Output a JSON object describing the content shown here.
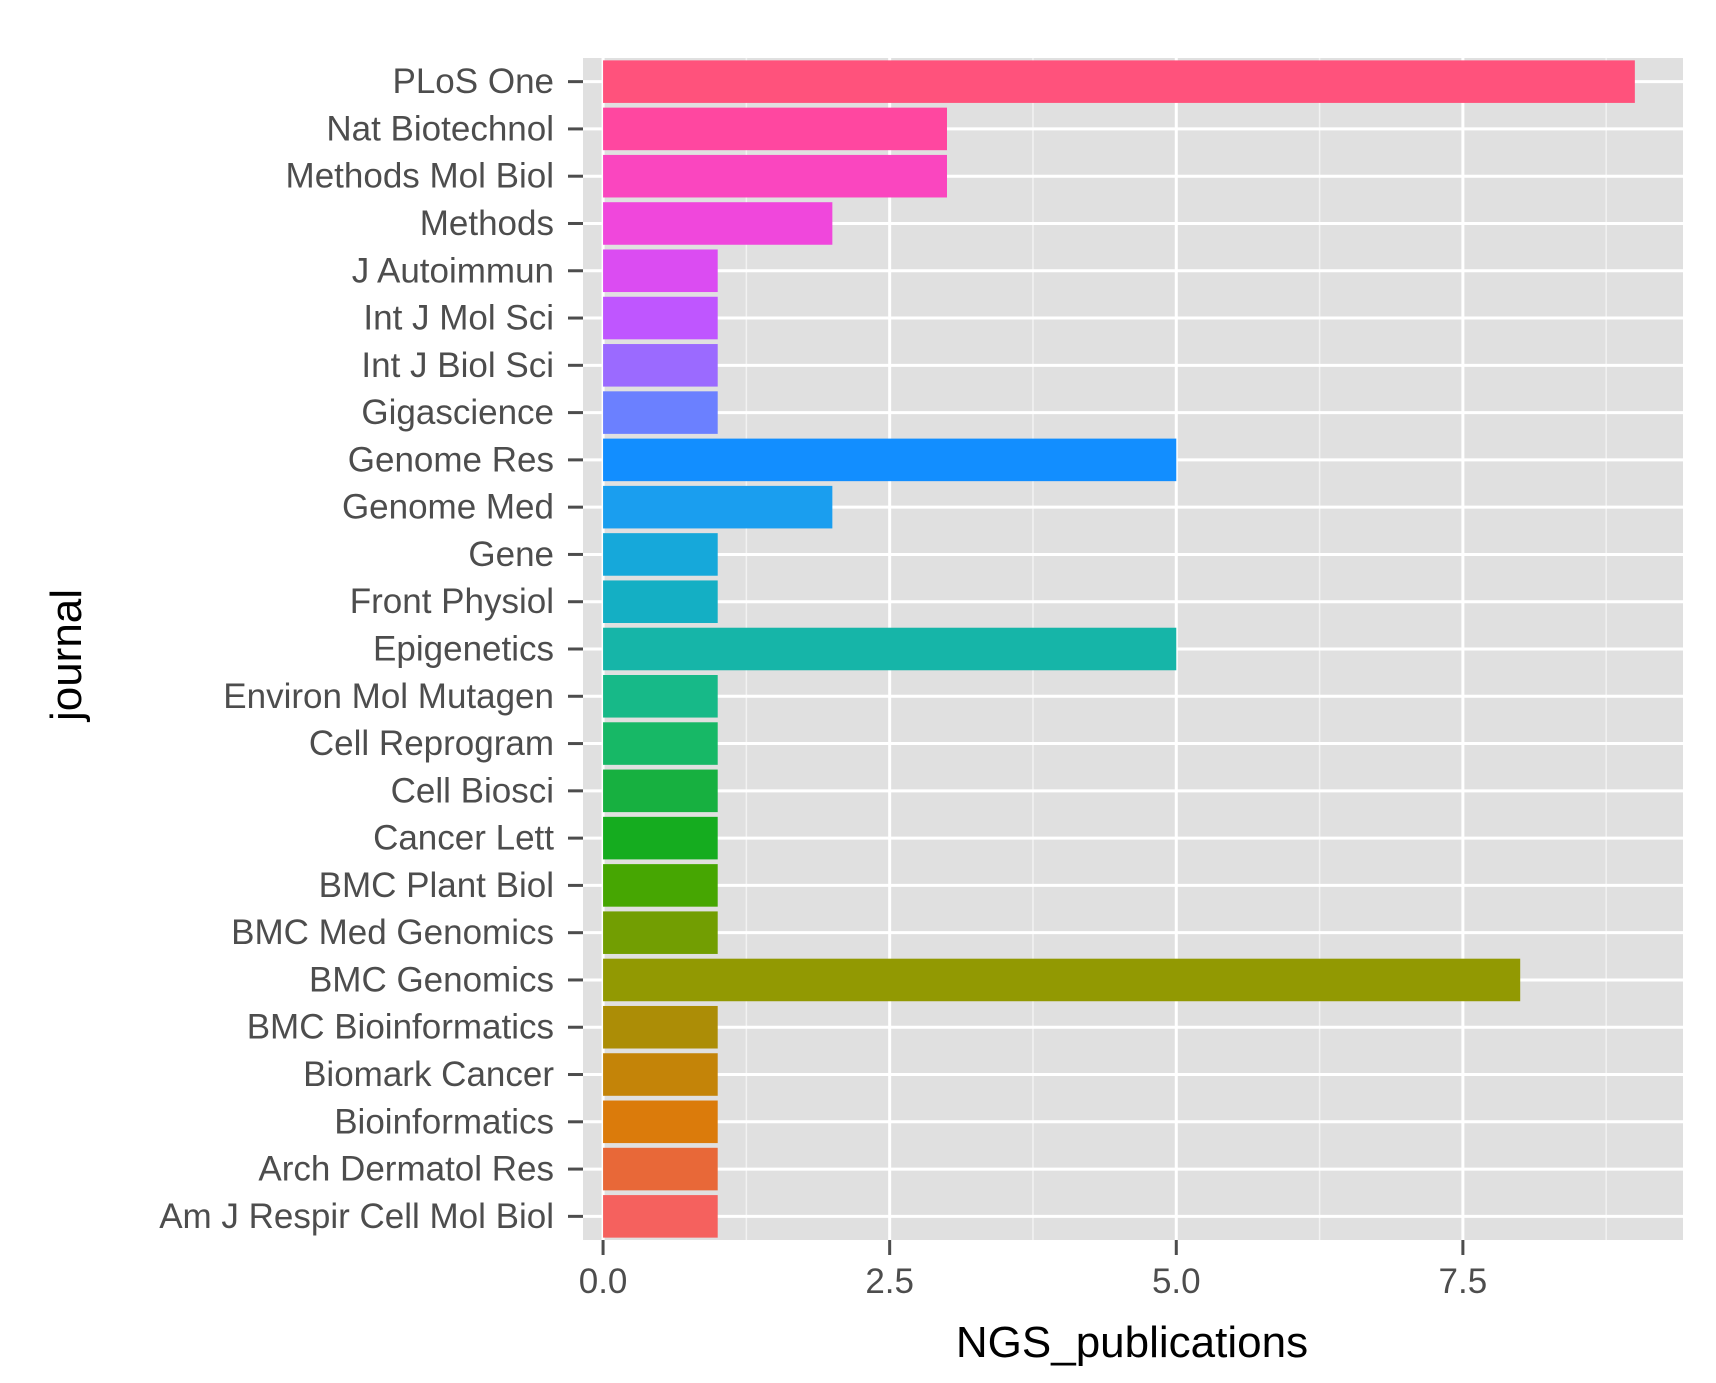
{
  "chart_data": {
    "type": "bar",
    "orientation": "horizontal",
    "xlabel": "NGS_publications",
    "ylabel": "journal",
    "xlim": [
      -0.175,
      9.42
    ],
    "x_ticks": [
      0.0,
      2.5,
      5.0,
      7.5
    ],
    "x_tick_labels": [
      "0.0",
      "2.5",
      "5.0",
      "7.5"
    ],
    "x_minor_ticks": [
      1.25,
      3.75,
      6.25,
      8.75
    ],
    "grid": true,
    "panel_background": "#e0e0e0",
    "categories": [
      "PLoS One",
      "Nat Biotechnol",
      "Methods Mol Biol",
      "Methods",
      "J Autoimmun",
      "Int J Mol Sci",
      "Int J Biol Sci",
      "Gigascience",
      "Genome Res",
      "Genome Med",
      "Gene",
      "Front Physiol",
      "Epigenetics",
      "Environ Mol Mutagen",
      "Cell Reprogram",
      "Cell Biosci",
      "Cancer Lett",
      "BMC Plant Biol",
      "BMC Med Genomics",
      "BMC Genomics",
      "BMC Bioinformatics",
      "Biomark Cancer",
      "Bioinformatics",
      "Arch Dermatol Res",
      "Am J Respir Cell Mol Biol"
    ],
    "values": [
      9,
      3,
      3,
      2,
      1,
      1,
      1,
      1,
      5,
      2,
      1,
      1,
      5,
      1,
      1,
      1,
      1,
      1,
      1,
      8,
      1,
      1,
      1,
      1,
      1
    ],
    "colors": [
      "#FF527C",
      "#FF47A0",
      "#FA46BF",
      "#F047DC",
      "#DB4CF2",
      "#BF56FF",
      "#9B6AFF",
      "#6B80FF",
      "#128EFF",
      "#1A9EEF",
      "#16A8DA",
      "#14AFC4",
      "#16B5A8",
      "#17B988",
      "#17B866",
      "#17B040",
      "#15AC1F",
      "#46A602",
      "#729E02",
      "#929902",
      "#AC8D06",
      "#C48408",
      "#DB7B0B",
      "#E86838",
      "#F5615E"
    ]
  }
}
